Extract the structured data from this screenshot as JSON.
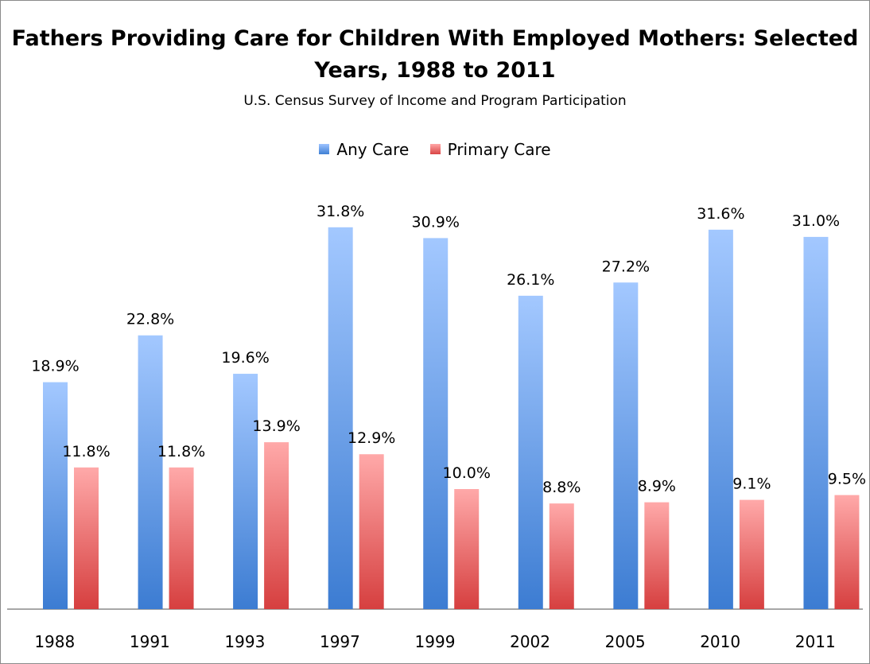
{
  "chart_data": {
    "type": "bar",
    "title": "Fathers Providing Care for Children With Employed Mothers: Selected Years, 1988 to 2011",
    "subtitle": "U.S. Census Survey of Income and Program Participation",
    "xlabel": "",
    "ylabel": "",
    "ylim": [
      0,
      35
    ],
    "grid": false,
    "legend_position": "top",
    "value_suffix": "%",
    "categories": [
      "1988",
      "1991",
      "1993",
      "1997",
      "1999",
      "2002",
      "2005",
      "2010",
      "2011"
    ],
    "series": [
      {
        "name": "Any Care",
        "color": "#5b95e0",
        "values": [
          18.9,
          22.8,
          19.6,
          31.8,
          30.9,
          26.1,
          27.2,
          31.6,
          31.0
        ]
      },
      {
        "name": "Primary Care",
        "color": "#e35e5e",
        "values": [
          11.8,
          11.8,
          13.9,
          12.9,
          10.0,
          8.8,
          8.9,
          9.1,
          9.5
        ]
      }
    ]
  }
}
